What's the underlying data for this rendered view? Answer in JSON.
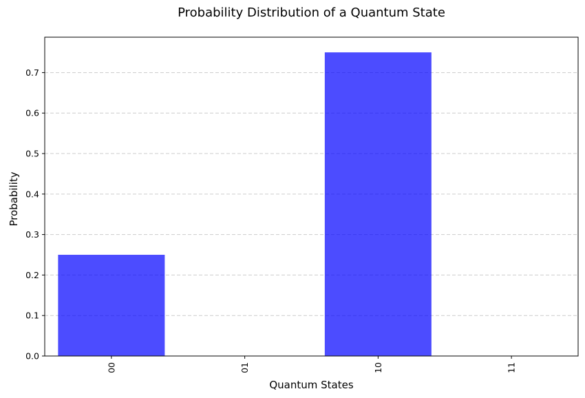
{
  "chart_data": {
    "type": "bar",
    "title": "Probability Distribution of a Quantum State",
    "xlabel": "Quantum States",
    "ylabel": "Probability",
    "categories": [
      "00",
      "01",
      "10",
      "11"
    ],
    "values": [
      0.25,
      0.0,
      0.75,
      0.0
    ],
    "ylim": [
      0,
      0.7875
    ],
    "yticks": [
      0.0,
      0.1,
      0.2,
      0.3,
      0.4,
      0.5,
      0.6,
      0.7
    ],
    "ytick_labels": [
      "0.0",
      "0.1",
      "0.2",
      "0.3",
      "0.4",
      "0.5",
      "0.6",
      "0.7"
    ],
    "x_tick_rotation": "vertical",
    "grid": {
      "y": true,
      "x": false,
      "style": "dashed"
    },
    "bar_color": "#0000ff",
    "bar_opacity": 0.7,
    "grid_color": "#cccccc"
  }
}
